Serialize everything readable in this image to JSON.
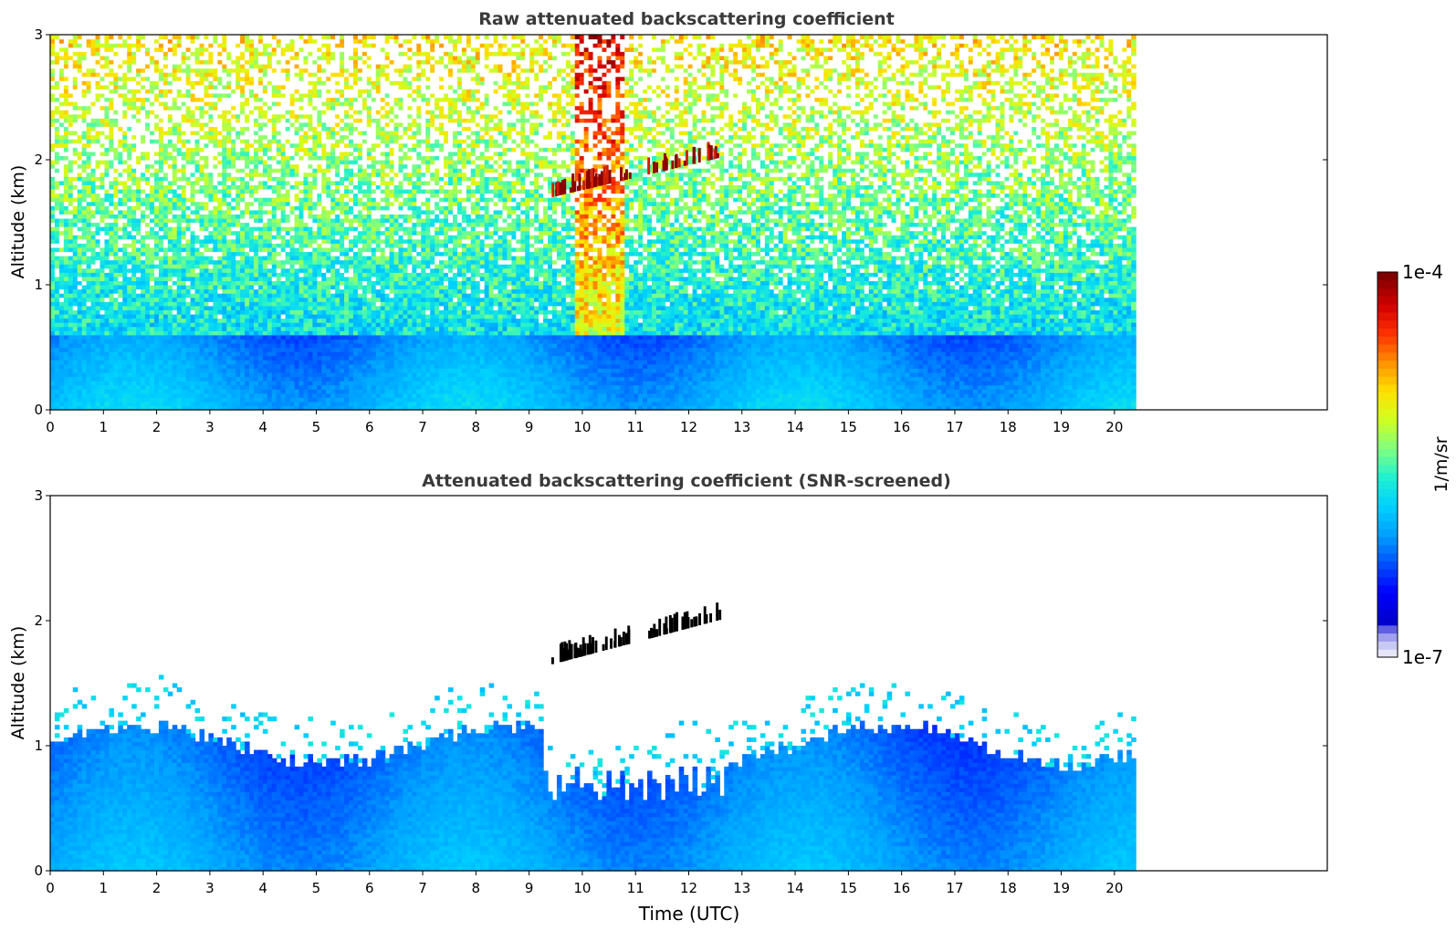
{
  "chart_data": [
    {
      "type": "heatmap",
      "title": "Raw attenuated backscattering coefficient",
      "xlabel": "",
      "ylabel": "Altitude (km)",
      "xlim": [
        0,
        24
      ],
      "ylim": [
        0,
        3
      ],
      "xticks": [
        "0",
        "1",
        "2",
        "3",
        "4",
        "5",
        "6",
        "7",
        "8",
        "9",
        "10",
        "11",
        "12",
        "13",
        "14",
        "15",
        "16",
        "17",
        "18",
        "19",
        "20"
      ],
      "yticks": [
        "0",
        "1",
        "2",
        "3"
      ],
      "data_time_range": [
        0,
        20.4
      ],
      "features": {
        "cloud_layer_altitude_km": [
          1.7,
          2.1
        ],
        "cloud_layer_time_utc": [
          9.4,
          12.6
        ],
        "dense_boundary_layer_top_km": 0.6
      }
    },
    {
      "type": "heatmap",
      "title": "Attenuated backscattering coefficient (SNR-screened)",
      "xlabel": "Time (UTC)",
      "ylabel": "Altitude (km)",
      "xlim": [
        0,
        24
      ],
      "ylim": [
        0,
        3
      ],
      "xticks": [
        "0",
        "1",
        "2",
        "3",
        "4",
        "5",
        "6",
        "7",
        "8",
        "9",
        "10",
        "11",
        "12",
        "13",
        "14",
        "15",
        "16",
        "17",
        "18",
        "19",
        "20"
      ],
      "yticks": [
        "0",
        "1",
        "2",
        "3"
      ],
      "data_time_range": [
        0,
        20.4
      ],
      "features": {
        "screened_layer_top_km": [
          0.9,
          1.3
        ],
        "cloud_layer_altitude_km": [
          1.65,
          2.1
        ],
        "cloud_layer_time_utc": [
          9.4,
          12.6
        ]
      }
    }
  ],
  "colorbar": {
    "label": "1/m/sr",
    "max_label": "1e-4",
    "min_label": "1e-7",
    "scale": "log",
    "colormap": "jet",
    "colors": [
      "#e6e6f8",
      "#0000cd",
      "#0000ff",
      "#0050ff",
      "#00a0ff",
      "#00d0ff",
      "#20f0d0",
      "#80ff80",
      "#d0ff20",
      "#ffe000",
      "#ff9000",
      "#ff3000",
      "#d00000",
      "#800000"
    ]
  }
}
